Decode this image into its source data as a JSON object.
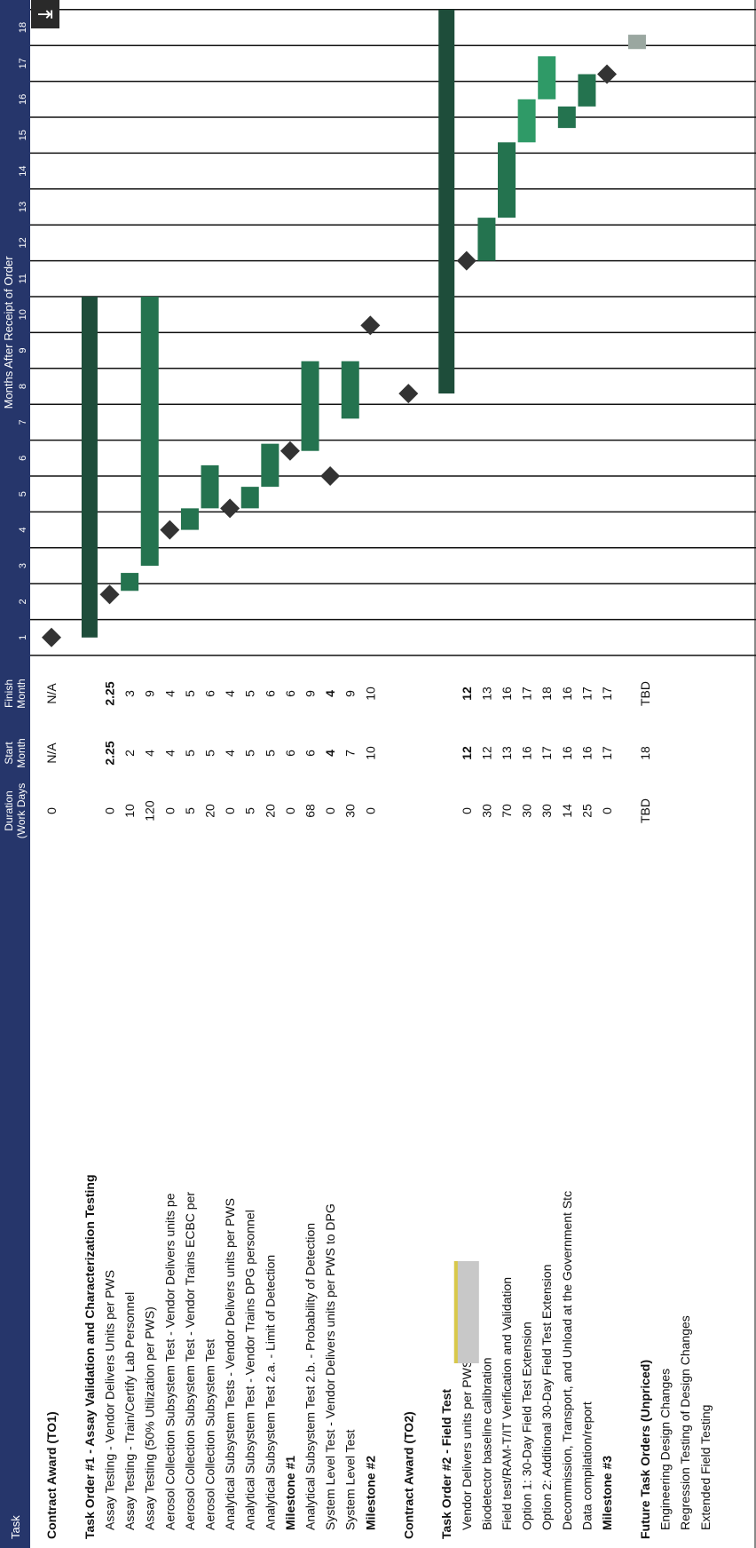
{
  "header": {
    "task_col": "Task",
    "duration_col": [
      "Duration",
      "(Work Days"
    ],
    "start_col": [
      "Start",
      "Month"
    ],
    "finish_col": [
      "Finish",
      "Month"
    ],
    "months_title": "Months After Receipt of Order"
  },
  "months": [
    "1",
    "2",
    "3",
    "4",
    "5",
    "6",
    "7",
    "8",
    "9",
    "10",
    "11",
    "12",
    "13",
    "14",
    "15",
    "16",
    "17",
    "18"
  ],
  "colors": {
    "header_bg": "#26366b",
    "dark_bar": "#1e4d3a",
    "medium_bar": "#24734f",
    "light_bar": "#2f9a67",
    "faded_bar": "#9aa7a0",
    "milestone": "#333333",
    "redaction": "#c8c8c8",
    "redaction_top": "#d8c84a"
  },
  "rows": [
    {
      "label": "Contract Award (TO1)",
      "bold": true,
      "indent": 0,
      "duration": "0",
      "start": "N/A",
      "finish": "N/A",
      "milestone": 1.0
    },
    {
      "spacer": true
    },
    {
      "label": "Task Order #1 - Assay Validation and Characterization Testing",
      "bold": true,
      "indent": 0,
      "bar": [
        1.0,
        10.5
      ],
      "bar_color": "dark_bar"
    },
    {
      "label": "Assay Testing - Vendor Delivers Units per PWS",
      "indent": 1,
      "duration": "0",
      "start": "2.25",
      "finish": "2.25",
      "bold_nums": true,
      "milestone": 2.2
    },
    {
      "label": "Assay Testing - Train/Certify Lab Personnel",
      "indent": 1,
      "duration": "10",
      "start": "2",
      "finish": "3",
      "bar": [
        2.3,
        2.8
      ],
      "bar_color": "medium_bar"
    },
    {
      "label": "Assay Testing (50% Utilization per PWS)",
      "indent": 1,
      "duration": "120",
      "start": "4",
      "finish": "9",
      "bar": [
        3.0,
        10.5
      ],
      "bar_color": "medium_bar"
    },
    {
      "label": "Aerosol Collection Subsystem Test - Vendor Delivers units pe",
      "indent": 1,
      "duration": "0",
      "start": "4",
      "finish": "4",
      "milestone": 4.0
    },
    {
      "label": "Aerosol Collection Subsystem Test - Vendor Trains ECBC per",
      "indent": 1,
      "duration": "5",
      "start": "5",
      "finish": "5",
      "bar": [
        4.0,
        4.6
      ],
      "bar_color": "medium_bar"
    },
    {
      "label": "Aerosol Collection Subsystem Test",
      "indent": 1,
      "duration": "20",
      "start": "5",
      "finish": "6",
      "bar": [
        4.6,
        5.8
      ],
      "bar_color": "medium_bar"
    },
    {
      "label": "Analytical Subsystem Tests - Vendor Delivers units per PWS",
      "indent": 1,
      "duration": "0",
      "start": "4",
      "finish": "4",
      "milestone": 4.6
    },
    {
      "label": "Analytical Subsystem Test - Vendor Trains DPG personnel",
      "indent": 1,
      "duration": "5",
      "start": "5",
      "finish": "5",
      "bar": [
        4.6,
        5.2
      ],
      "bar_color": "medium_bar"
    },
    {
      "label": "Analytical Subsystem Test 2.a. - Limit of Detection",
      "indent": 1,
      "duration": "20",
      "start": "5",
      "finish": "6",
      "bar": [
        5.2,
        6.4
      ],
      "bar_color": "medium_bar"
    },
    {
      "label": "Milestone #1",
      "bold": true,
      "indent": 1,
      "duration": "0",
      "start": "6",
      "finish": "6",
      "milestone": 6.2
    },
    {
      "label": "Analytical Subsystem Test 2.b. - Probability of Detection",
      "indent": 1,
      "duration": "68",
      "start": "6",
      "finish": "9",
      "bar": [
        6.2,
        8.7
      ],
      "bar_color": "medium_bar"
    },
    {
      "label": "System Level Test - Vendor Delivers units per PWS to DPG",
      "indent": 1,
      "duration": "0",
      "start": "4",
      "finish": "4",
      "bold_nums": true,
      "milestone": 5.5
    },
    {
      "label": "System Level Test",
      "indent": 1,
      "duration": "30",
      "start": "7",
      "finish": "9",
      "bar": [
        7.1,
        8.7
      ],
      "bar_color": "medium_bar"
    },
    {
      "label": "Milestone #2",
      "bold": true,
      "indent": 1,
      "duration": "0",
      "start": "10",
      "finish": "10",
      "milestone": 9.7
    },
    {
      "spacer": true
    },
    {
      "label": "Contract Award (TO2)",
      "bold": true,
      "indent": 0,
      "milestone": 7.8
    },
    {
      "spacer": true
    },
    {
      "label": "Task Order #2 - Field Test",
      "bold": true,
      "indent": 0,
      "bar": [
        7.8,
        18.5
      ],
      "bar_color": "dark_bar"
    },
    {
      "label": "Vendor Delivers units per PWS t",
      "indent": 1,
      "duration": "0",
      "start": "12",
      "finish": "12",
      "bold_nums": true,
      "milestone": 11.5,
      "redacted": true
    },
    {
      "label": "Biodetector baseline calibration",
      "indent": 1,
      "duration": "30",
      "start": "12",
      "finish": "13",
      "bar": [
        11.5,
        12.7
      ],
      "bar_color": "medium_bar"
    },
    {
      "label": "Field test/RAM-T/IT Verification and Validation",
      "indent": 1,
      "duration": "70",
      "start": "13",
      "finish": "16",
      "bar": [
        12.7,
        14.8
      ],
      "bar_color": "medium_bar"
    },
    {
      "label": "Option 1: 30-Day Field Test Extension",
      "indent": 1,
      "duration": "30",
      "start": "16",
      "finish": "17",
      "bar": [
        14.8,
        16.0
      ],
      "bar_color": "light_bar"
    },
    {
      "label": "Option 2: Additional 30-Day Field Test Extension",
      "indent": 1,
      "duration": "30",
      "start": "17",
      "finish": "18",
      "bar": [
        16.0,
        17.2
      ],
      "bar_color": "light_bar"
    },
    {
      "label": "Decommission, Transport, and Unload at the Government Stc",
      "indent": 1,
      "duration": "14",
      "start": "16",
      "finish": "16",
      "bar": [
        15.2,
        15.8
      ],
      "bar_color": "medium_bar"
    },
    {
      "label": "Data compilation/report",
      "indent": 1,
      "duration": "25",
      "start": "16",
      "finish": "17",
      "bar": [
        15.8,
        16.7
      ],
      "bar_color": "medium_bar"
    },
    {
      "label": "Milestone #3",
      "bold": true,
      "indent": 1,
      "duration": "0",
      "start": "17",
      "finish": "17",
      "milestone": 16.7
    },
    {
      "spacer": true
    },
    {
      "label": "Future Task Orders (Unpriced)",
      "bold": true,
      "indent": 0,
      "duration": "TBD",
      "start": "18",
      "finish": "TBD",
      "bar": [
        17.4,
        17.8
      ],
      "bar_color": "faded_bar",
      "bar_row_offset": -9
    },
    {
      "label": "Engineering Design Changes",
      "indent": 1
    },
    {
      "label": "Regression Testing of Design Changes",
      "indent": 1
    },
    {
      "label": "Extended Field Testing",
      "indent": 1
    }
  ],
  "chart_data": {
    "type": "gantt",
    "title": "",
    "x_axis_label": "Months After Receipt of Order",
    "x_ticks": [
      "1",
      "2",
      "3",
      "4",
      "5",
      "6",
      "7",
      "8",
      "9",
      "10",
      "11",
      "12",
      "13",
      "14",
      "15",
      "16",
      "17",
      "18"
    ],
    "tasks": [
      {
        "task": "Contract Award (TO1)",
        "duration": "0",
        "start": "N/A",
        "finish": "N/A",
        "type": "milestone"
      },
      {
        "task": "Task Order #1 - Assay Validation and Characterization Testing",
        "type": "summary"
      },
      {
        "task": "Assay Testing - Vendor Delivers Units per PWS",
        "duration": "0",
        "start": "2.25",
        "finish": "2.25",
        "type": "milestone"
      },
      {
        "task": "Assay Testing - Train/Certify Lab Personnel",
        "duration": "10",
        "start": "2",
        "finish": "3",
        "type": "task"
      },
      {
        "task": "Assay Testing (50% Utilization per PWS)",
        "duration": "120",
        "start": "4",
        "finish": "9",
        "type": "task"
      },
      {
        "task": "Aerosol Collection Subsystem Test - Vendor Delivers units pe",
        "duration": "0",
        "start": "4",
        "finish": "4",
        "type": "milestone"
      },
      {
        "task": "Aerosol Collection Subsystem Test - Vendor Trains ECBC per",
        "duration": "5",
        "start": "5",
        "finish": "5",
        "type": "task"
      },
      {
        "task": "Aerosol Collection Subsystem Test",
        "duration": "20",
        "start": "5",
        "finish": "6",
        "type": "task"
      },
      {
        "task": "Analytical Subsystem Tests - Vendor Delivers units per PWS",
        "duration": "0",
        "start": "4",
        "finish": "4",
        "type": "milestone"
      },
      {
        "task": "Analytical Subsystem Test - Vendor Trains DPG personnel",
        "duration": "5",
        "start": "5",
        "finish": "5",
        "type": "task"
      },
      {
        "task": "Analytical Subsystem Test 2.a. - Limit of Detection",
        "duration": "20",
        "start": "5",
        "finish": "6",
        "type": "task"
      },
      {
        "task": "Milestone #1",
        "duration": "0",
        "start": "6",
        "finish": "6",
        "type": "milestone"
      },
      {
        "task": "Analytical Subsystem Test 2.b. - Probability of Detection",
        "duration": "68",
        "start": "6",
        "finish": "9",
        "type": "task"
      },
      {
        "task": "System Level Test - Vendor Delivers units per PWS to DPG",
        "duration": "0",
        "start": "4",
        "finish": "4",
        "type": "milestone"
      },
      {
        "task": "System Level Test",
        "duration": "30",
        "start": "7",
        "finish": "9",
        "type": "task"
      },
      {
        "task": "Milestone #2",
        "duration": "0",
        "start": "10",
        "finish": "10",
        "type": "milestone"
      },
      {
        "task": "Contract Award (TO2)",
        "type": "milestone"
      },
      {
        "task": "Task Order #2 - Field Test",
        "type": "summary"
      },
      {
        "task": "Vendor Delivers units per PWS t",
        "duration": "0",
        "start": "12",
        "finish": "12",
        "type": "milestone"
      },
      {
        "task": "Biodetector baseline calibration",
        "duration": "30",
        "start": "12",
        "finish": "13",
        "type": "task"
      },
      {
        "task": "Field test/RAM-T/IT Verification and Validation",
        "duration": "70",
        "start": "13",
        "finish": "16",
        "type": "task"
      },
      {
        "task": "Option 1: 30-Day Field Test Extension",
        "duration": "30",
        "start": "16",
        "finish": "17",
        "type": "task"
      },
      {
        "task": "Option 2: Additional 30-Day Field Test Extension",
        "duration": "30",
        "start": "17",
        "finish": "18",
        "type": "task"
      },
      {
        "task": "Decommission, Transport, and Unload at the Government Stc",
        "duration": "14",
        "start": "16",
        "finish": "16",
        "type": "task"
      },
      {
        "task": "Data compilation/report",
        "duration": "25",
        "start": "16",
        "finish": "17",
        "type": "task"
      },
      {
        "task": "Milestone #3",
        "duration": "0",
        "start": "17",
        "finish": "17",
        "type": "milestone"
      },
      {
        "task": "Future Task Orders (Unpriced)",
        "duration": "TBD",
        "start": "18",
        "finish": "TBD",
        "type": "task"
      },
      {
        "task": "Engineering Design Changes",
        "type": "label"
      },
      {
        "task": "Regression Testing of Design Changes",
        "type": "label"
      },
      {
        "task": "Extended Field Testing",
        "type": "label"
      }
    ]
  }
}
